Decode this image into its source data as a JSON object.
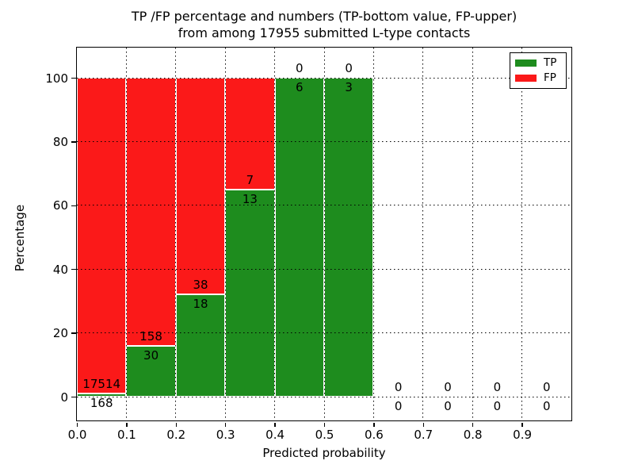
{
  "figure": {
    "title_line1": "TP /FP percentage and numbers (TP-bottom value, FP-upper)",
    "title_line2": "from among 17955 submitted L-type contacts",
    "xlabel": "Predicted probability",
    "ylabel": "Percentage"
  },
  "chart_data": {
    "type": "bar",
    "stacked": true,
    "title": "TP /FP percentage and numbers (TP-bottom value, FP-upper) from among 17955 submitted L-type contacts",
    "xlabel": "Predicted probability",
    "ylabel": "Percentage",
    "x_tick_labels": [
      "0.0",
      "0.1",
      "0.2",
      "0.3",
      "0.4",
      "0.5",
      "0.6",
      "0.7",
      "0.8",
      "0.9"
    ],
    "y_tick_values": [
      0,
      20,
      40,
      60,
      80,
      100
    ],
    "xlim": [
      0.0,
      1.0
    ],
    "ylim_display": [
      -7.6,
      109.5
    ],
    "grid": "dotted black, both axes, drawn over bars",
    "bin_width": 0.1,
    "total_contacts": 17955,
    "bins": [
      {
        "x_start": 0.0,
        "x_end": 0.1,
        "tp_count": 168,
        "fp_count": 17514,
        "tp_pct": 0.95,
        "fp_pct": 99.05
      },
      {
        "x_start": 0.1,
        "x_end": 0.2,
        "tp_count": 30,
        "fp_count": 158,
        "tp_pct": 15.96,
        "fp_pct": 84.04
      },
      {
        "x_start": 0.2,
        "x_end": 0.3,
        "tp_count": 18,
        "fp_count": 38,
        "tp_pct": 32.14,
        "fp_pct": 67.86
      },
      {
        "x_start": 0.3,
        "x_end": 0.4,
        "tp_count": 13,
        "fp_count": 7,
        "tp_pct": 65.0,
        "fp_pct": 35.0
      },
      {
        "x_start": 0.4,
        "x_end": 0.5,
        "tp_count": 6,
        "fp_count": 0,
        "tp_pct": 100.0,
        "fp_pct": 0.0
      },
      {
        "x_start": 0.5,
        "x_end": 0.6,
        "tp_count": 3,
        "fp_count": 0,
        "tp_pct": 100.0,
        "fp_pct": 0.0
      },
      {
        "x_start": 0.6,
        "x_end": 0.7,
        "tp_count": 0,
        "fp_count": 0,
        "tp_pct": 0.0,
        "fp_pct": 0.0
      },
      {
        "x_start": 0.7,
        "x_end": 0.8,
        "tp_count": 0,
        "fp_count": 0,
        "tp_pct": 0.0,
        "fp_pct": 0.0
      },
      {
        "x_start": 0.8,
        "x_end": 0.9,
        "tp_count": 0,
        "fp_count": 0,
        "tp_pct": 0.0,
        "fp_pct": 0.0
      },
      {
        "x_start": 0.9,
        "x_end": 1.0,
        "tp_count": 0,
        "fp_count": 0,
        "tp_pct": 0.0,
        "fp_pct": 0.0
      }
    ],
    "legend": {
      "position": "upper right",
      "entries": [
        {
          "label": "TP",
          "color": "#1e8c1e"
        },
        {
          "label": "FP",
          "color": "#fb1919"
        }
      ]
    },
    "colors": {
      "tp": "#1e8c1e",
      "fp": "#fb1919",
      "bar_edge": "#ffffff",
      "grid": "#000000",
      "frame": "#000000"
    }
  }
}
